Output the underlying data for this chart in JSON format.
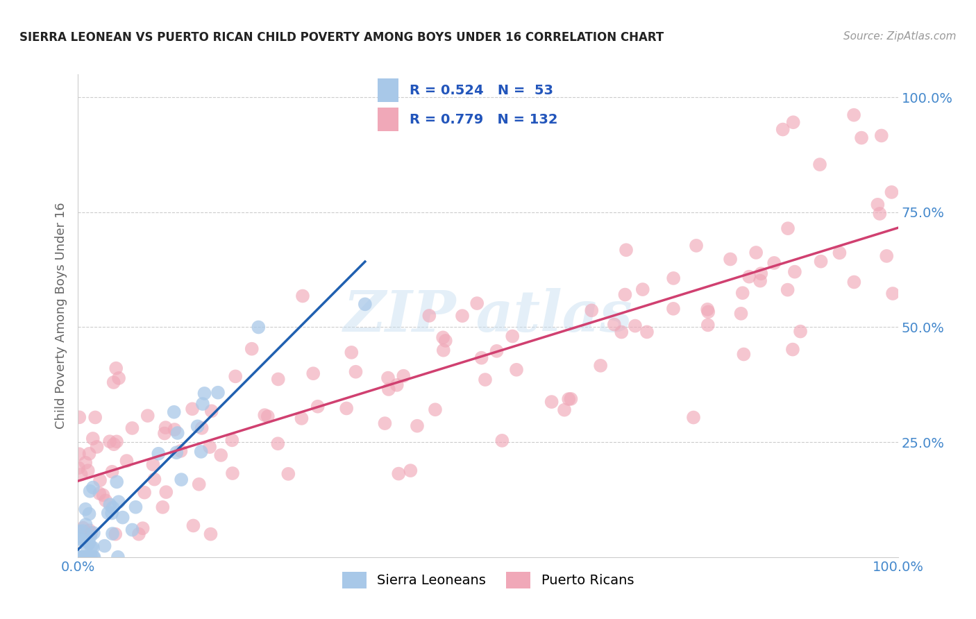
{
  "title": "SIERRA LEONEAN VS PUERTO RICAN CHILD POVERTY AMONG BOYS UNDER 16 CORRELATION CHART",
  "source": "Source: ZipAtlas.com",
  "ylabel": "Child Poverty Among Boys Under 16",
  "blue_color": "#a8c8e8",
  "pink_color": "#f0a8b8",
  "blue_line_color": "#2060b0",
  "blue_dash_color": "#88aacc",
  "pink_line_color": "#d04070",
  "background_color": "#ffffff",
  "grid_color": "#cccccc",
  "tick_color": "#4488cc",
  "ytick_color": "#4488cc",
  "legend_border_color": "#aaaaaa",
  "legend_r_blue": "R = 0.524",
  "legend_n_blue": "N =  53",
  "legend_r_pink": "R = 0.779",
  "legend_n_pink": "N = 132",
  "legend_label_blue": "Sierra Leoneans",
  "legend_label_pink": "Puerto Ricans"
}
